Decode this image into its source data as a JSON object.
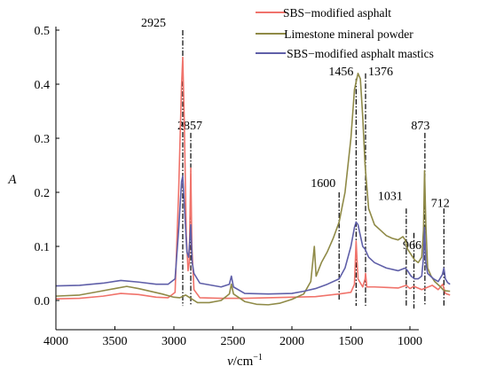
{
  "chart_data": {
    "type": "line",
    "xlabel_var": "ν",
    "xlabel_unit": "/cm",
    "xlabel_sup": "−1",
    "ylabel": "A",
    "xlim": [
      4000,
      650
    ],
    "ylim": [
      -0.03,
      0.5
    ],
    "x_reversed": true,
    "grid": false,
    "legend_position": "top-right",
    "x_ticks": [
      4000,
      3500,
      3000,
      2500,
      2000,
      1500,
      1000
    ],
    "y_ticks": [
      0.0,
      0.1,
      0.2,
      0.3,
      0.4,
      0.5
    ],
    "y_tick_labels": [
      "0.0",
      "0.1",
      "0.2",
      "0.3",
      "0.4",
      "0.5"
    ],
    "series": [
      {
        "name": "SBS−modified asphalt",
        "color": "#f0736b",
        "points": [
          [
            4000,
            0.003
          ],
          [
            3800,
            0.004
          ],
          [
            3600,
            0.008
          ],
          [
            3450,
            0.013
          ],
          [
            3300,
            0.011
          ],
          [
            3150,
            0.006
          ],
          [
            3050,
            0.005
          ],
          [
            2990,
            0.015
          ],
          [
            2960,
            0.2
          ],
          [
            2935,
            0.4
          ],
          [
            2925,
            0.45
          ],
          [
            2912,
            0.33
          ],
          [
            2895,
            0.12
          ],
          [
            2880,
            0.055
          ],
          [
            2870,
            0.07
          ],
          [
            2857,
            0.245
          ],
          [
            2848,
            0.1
          ],
          [
            2830,
            0.02
          ],
          [
            2780,
            0.005
          ],
          [
            2600,
            0.004
          ],
          [
            2400,
            0.004
          ],
          [
            2200,
            0.005
          ],
          [
            2000,
            0.006
          ],
          [
            1800,
            0.007
          ],
          [
            1600,
            0.012
          ],
          [
            1500,
            0.015
          ],
          [
            1470,
            0.03
          ],
          [
            1456,
            0.11
          ],
          [
            1440,
            0.04
          ],
          [
            1400,
            0.025
          ],
          [
            1380,
            0.04
          ],
          [
            1376,
            0.05
          ],
          [
            1365,
            0.025
          ],
          [
            1300,
            0.025
          ],
          [
            1200,
            0.024
          ],
          [
            1100,
            0.023
          ],
          [
            1031,
            0.028
          ],
          [
            1000,
            0.022
          ],
          [
            966,
            0.026
          ],
          [
            900,
            0.02
          ],
          [
            810,
            0.028
          ],
          [
            760,
            0.02
          ],
          [
            722,
            0.03
          ],
          [
            700,
            0.013
          ],
          [
            660,
            0.01
          ]
        ]
      },
      {
        "name": "Limestone mineral powder",
        "color": "#8f8a47",
        "points": [
          [
            4000,
            0.008
          ],
          [
            3800,
            0.01
          ],
          [
            3650,
            0.016
          ],
          [
            3500,
            0.022
          ],
          [
            3400,
            0.026
          ],
          [
            3300,
            0.022
          ],
          [
            3100,
            0.012
          ],
          [
            3000,
            0.006
          ],
          [
            2950,
            0.005
          ],
          [
            2900,
            0.01
          ],
          [
            2850,
            0.003
          ],
          [
            2800,
            -0.004
          ],
          [
            2700,
            -0.004
          ],
          [
            2600,
            0.0
          ],
          [
            2530,
            0.012
          ],
          [
            2513,
            0.03
          ],
          [
            2495,
            0.012
          ],
          [
            2400,
            -0.002
          ],
          [
            2300,
            -0.007
          ],
          [
            2200,
            -0.008
          ],
          [
            2100,
            -0.005
          ],
          [
            2000,
            0.002
          ],
          [
            1900,
            0.012
          ],
          [
            1840,
            0.035
          ],
          [
            1810,
            0.1
          ],
          [
            1795,
            0.045
          ],
          [
            1750,
            0.07
          ],
          [
            1700,
            0.09
          ],
          [
            1650,
            0.115
          ],
          [
            1600,
            0.145
          ],
          [
            1550,
            0.2
          ],
          [
            1500,
            0.3
          ],
          [
            1470,
            0.39
          ],
          [
            1440,
            0.42
          ],
          [
            1420,
            0.41
          ],
          [
            1400,
            0.34
          ],
          [
            1380,
            0.25
          ],
          [
            1350,
            0.17
          ],
          [
            1300,
            0.14
          ],
          [
            1250,
            0.13
          ],
          [
            1200,
            0.12
          ],
          [
            1150,
            0.115
          ],
          [
            1100,
            0.112
          ],
          [
            1060,
            0.118
          ],
          [
            1040,
            0.112
          ],
          [
            1020,
            0.095
          ],
          [
            990,
            0.085
          ],
          [
            960,
            0.075
          ],
          [
            930,
            0.07
          ],
          [
            900,
            0.08
          ],
          [
            885,
            0.13
          ],
          [
            876,
            0.24
          ],
          [
            865,
            0.14
          ],
          [
            850,
            0.06
          ],
          [
            820,
            0.045
          ],
          [
            790,
            0.035
          ],
          [
            740,
            0.025
          ],
          [
            720,
            0.02
          ],
          [
            700,
            0.018
          ],
          [
            660,
            0.017
          ]
        ]
      },
      {
        "name": "SBS−modified asphalt mastics",
        "color": "#5f5fa8",
        "points": [
          [
            4000,
            0.027
          ],
          [
            3800,
            0.028
          ],
          [
            3600,
            0.032
          ],
          [
            3450,
            0.037
          ],
          [
            3300,
            0.034
          ],
          [
            3150,
            0.03
          ],
          [
            3050,
            0.03
          ],
          [
            2990,
            0.04
          ],
          [
            2960,
            0.13
          ],
          [
            2935,
            0.22
          ],
          [
            2925,
            0.23
          ],
          [
            2910,
            0.17
          ],
          [
            2890,
            0.09
          ],
          [
            2875,
            0.08
          ],
          [
            2857,
            0.14
          ],
          [
            2845,
            0.07
          ],
          [
            2830,
            0.05
          ],
          [
            2780,
            0.032
          ],
          [
            2600,
            0.025
          ],
          [
            2530,
            0.03
          ],
          [
            2513,
            0.045
          ],
          [
            2495,
            0.025
          ],
          [
            2400,
            0.013
          ],
          [
            2200,
            0.012
          ],
          [
            2000,
            0.013
          ],
          [
            1900,
            0.017
          ],
          [
            1800,
            0.022
          ],
          [
            1700,
            0.03
          ],
          [
            1600,
            0.04
          ],
          [
            1550,
            0.06
          ],
          [
            1500,
            0.1
          ],
          [
            1470,
            0.135
          ],
          [
            1456,
            0.145
          ],
          [
            1440,
            0.14
          ],
          [
            1420,
            0.12
          ],
          [
            1400,
            0.1
          ],
          [
            1380,
            0.095
          ],
          [
            1350,
            0.08
          ],
          [
            1300,
            0.07
          ],
          [
            1200,
            0.06
          ],
          [
            1100,
            0.055
          ],
          [
            1040,
            0.06
          ],
          [
            1020,
            0.055
          ],
          [
            990,
            0.045
          ],
          [
            960,
            0.04
          ],
          [
            930,
            0.04
          ],
          [
            900,
            0.045
          ],
          [
            885,
            0.08
          ],
          [
            876,
            0.135
          ],
          [
            865,
            0.07
          ],
          [
            850,
            0.05
          ],
          [
            800,
            0.04
          ],
          [
            760,
            0.035
          ],
          [
            725,
            0.048
          ],
          [
            712,
            0.06
          ],
          [
            700,
            0.04
          ],
          [
            680,
            0.033
          ],
          [
            660,
            0.03
          ]
        ]
      }
    ],
    "annotations": [
      {
        "label": "2925",
        "x": 2925,
        "line_top": 0.5,
        "line_bottom": -0.01
      },
      {
        "label": "2857",
        "x": 2857,
        "line_top": 0.31,
        "line_bottom": -0.01
      },
      {
        "label": "1600",
        "x": 1600,
        "line_top": 0.2,
        "line_bottom": 0.0
      },
      {
        "label": "1456",
        "x": 1456,
        "line_top": 0.41,
        "line_bottom": -0.01
      },
      {
        "label": "1376",
        "x": 1376,
        "line_top": 0.42,
        "line_bottom": -0.01
      },
      {
        "label": "1031",
        "x": 1031,
        "line_top": 0.17,
        "line_bottom": -0.01
      },
      {
        "label": "966",
        "x": 966,
        "line_top": 0.125,
        "line_bottom": -0.015
      },
      {
        "label": "873",
        "x": 873,
        "line_top": 0.31,
        "line_bottom": -0.01
      },
      {
        "label": "712",
        "x": 712,
        "line_top": 0.17,
        "line_bottom": -0.01
      }
    ]
  }
}
